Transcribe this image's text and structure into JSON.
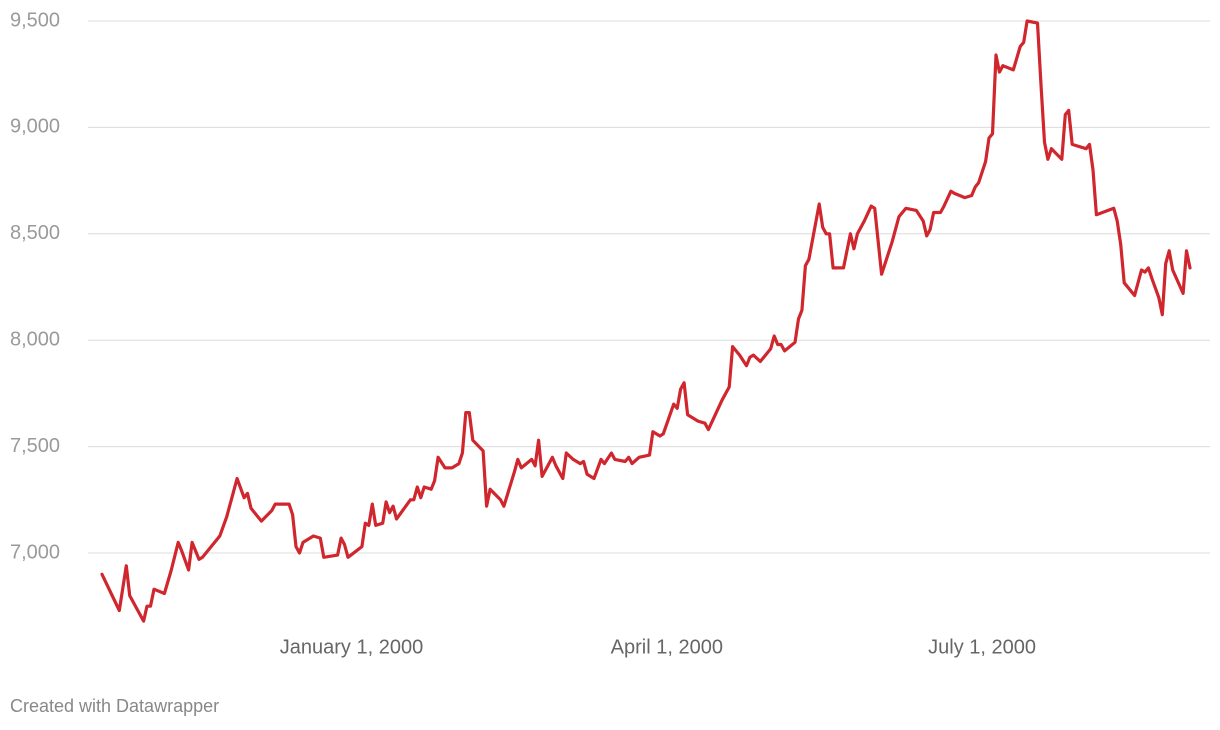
{
  "chart_data": {
    "type": "line",
    "x": [
      "1999-10-21",
      "1999-10-26",
      "1999-10-28",
      "1999-10-29",
      "1999-11-02",
      "1999-11-03",
      "1999-11-04",
      "1999-11-05",
      "1999-11-08",
      "1999-11-10",
      "1999-11-12",
      "1999-11-13",
      "1999-11-15",
      "1999-11-16",
      "1999-11-18",
      "1999-11-19",
      "1999-11-24",
      "1999-11-26",
      "1999-11-29",
      "1999-12-01",
      "1999-12-02",
      "1999-12-03",
      "1999-12-06",
      "1999-12-09",
      "1999-12-10",
      "1999-12-14",
      "1999-12-15",
      "1999-12-16",
      "1999-12-17",
      "1999-12-18",
      "1999-12-21",
      "1999-12-23",
      "1999-12-24",
      "1999-12-28",
      "1999-12-29",
      "1999-12-30",
      "1999-12-31",
      "2000-01-04",
      "2000-01-05",
      "2000-01-06",
      "2000-01-07",
      "2000-01-08",
      "2000-01-10",
      "2000-01-11",
      "2000-01-12",
      "2000-01-13",
      "2000-01-14",
      "2000-01-18",
      "2000-01-19",
      "2000-01-20",
      "2000-01-21",
      "2000-01-22",
      "2000-01-24",
      "2000-01-25",
      "2000-01-26",
      "2000-01-28",
      "2000-01-30",
      "2000-02-01",
      "2000-02-02",
      "2000-02-03",
      "2000-02-04",
      "2000-02-05",
      "2000-02-08",
      "2000-02-09",
      "2000-02-10",
      "2000-02-13",
      "2000-02-14",
      "2000-02-17",
      "2000-02-18",
      "2000-02-19",
      "2000-02-22",
      "2000-02-23",
      "2000-02-24",
      "2000-02-25",
      "2000-02-28",
      "2000-02-29",
      "2000-03-02",
      "2000-03-03",
      "2000-03-05",
      "2000-03-07",
      "2000-03-08",
      "2000-03-09",
      "2000-03-11",
      "2000-03-13",
      "2000-03-14",
      "2000-03-16",
      "2000-03-17",
      "2000-03-20",
      "2000-03-21",
      "2000-03-22",
      "2000-03-24",
      "2000-03-27",
      "2000-03-28",
      "2000-03-30",
      "2000-03-31",
      "2000-04-03",
      "2000-04-04",
      "2000-04-05",
      "2000-04-06",
      "2000-04-07",
      "2000-04-10",
      "2000-04-12",
      "2000-04-13",
      "2000-04-17",
      "2000-04-19",
      "2000-04-20",
      "2000-04-22",
      "2000-04-24",
      "2000-04-25",
      "2000-04-26",
      "2000-04-28",
      "2000-05-01",
      "2000-05-02",
      "2000-05-03",
      "2000-05-04",
      "2000-05-05",
      "2000-05-08",
      "2000-05-09",
      "2000-05-10",
      "2000-05-11",
      "2000-05-12",
      "2000-05-15",
      "2000-05-16",
      "2000-05-17",
      "2000-05-18",
      "2000-05-19",
      "2000-05-22",
      "2000-05-24",
      "2000-05-25",
      "2000-05-26",
      "2000-05-28",
      "2000-05-30",
      "2000-05-31",
      "2000-06-02",
      "2000-06-05",
      "2000-06-07",
      "2000-06-08",
      "2000-06-09",
      "2000-06-12",
      "2000-06-14",
      "2000-06-15",
      "2000-06-16",
      "2000-06-17",
      "2000-06-19",
      "2000-06-20",
      "2000-06-22",
      "2000-06-23",
      "2000-06-26",
      "2000-06-28",
      "2000-06-29",
      "2000-06-30",
      "2000-07-02",
      "2000-07-03",
      "2000-07-04",
      "2000-07-05",
      "2000-07-06",
      "2000-07-07",
      "2000-07-10",
      "2000-07-12",
      "2000-07-13",
      "2000-07-14",
      "2000-07-17",
      "2000-07-18",
      "2000-07-19",
      "2000-07-20",
      "2000-07-21",
      "2000-07-24",
      "2000-07-25",
      "2000-07-26",
      "2000-07-27",
      "2000-07-31",
      "2000-08-01",
      "2000-08-02",
      "2000-08-03",
      "2000-08-08",
      "2000-08-09",
      "2000-08-10",
      "2000-08-11",
      "2000-08-14",
      "2000-08-16",
      "2000-08-17",
      "2000-08-18",
      "2000-08-19",
      "2000-08-21",
      "2000-08-22",
      "2000-08-23",
      "2000-08-24",
      "2000-08-25",
      "2000-08-28",
      "2000-08-29",
      "2000-08-30"
    ],
    "series": [
      {
        "color": "#d0262d",
        "values": [
          6900,
          6730,
          6940,
          6800,
          6680,
          6750,
          6750,
          6830,
          6810,
          6920,
          7050,
          7010,
          6920,
          7050,
          6970,
          6980,
          7080,
          7170,
          7350,
          7260,
          7280,
          7210,
          7150,
          7200,
          7230,
          7230,
          7180,
          7030,
          7000,
          7050,
          7080,
          7070,
          6980,
          6990,
          7070,
          7040,
          6980,
          7030,
          7140,
          7130,
          7230,
          7130,
          7140,
          7240,
          7190,
          7220,
          7160,
          7250,
          7250,
          7310,
          7260,
          7310,
          7300,
          7340,
          7450,
          7400,
          7400,
          7420,
          7470,
          7660,
          7660,
          7530,
          7480,
          7220,
          7300,
          7250,
          7220,
          7380,
          7440,
          7400,
          7440,
          7410,
          7530,
          7360,
          7450,
          7410,
          7350,
          7470,
          7440,
          7420,
          7430,
          7370,
          7350,
          7440,
          7420,
          7470,
          7440,
          7430,
          7450,
          7420,
          7450,
          7460,
          7570,
          7550,
          7560,
          7700,
          7680,
          7770,
          7800,
          7650,
          7620,
          7610,
          7580,
          7720,
          7780,
          7970,
          7930,
          7880,
          7920,
          7930,
          7900,
          7960,
          8020,
          7980,
          7980,
          7950,
          7990,
          8100,
          8140,
          8350,
          8380,
          8640,
          8530,
          8500,
          8500,
          8340,
          8340,
          8500,
          8430,
          8500,
          8560,
          8630,
          8620,
          8310,
          8460,
          8580,
          8600,
          8620,
          8610,
          8560,
          8490,
          8520,
          8600,
          8600,
          8630,
          8700,
          8690,
          8670,
          8680,
          8720,
          8740,
          8840,
          8950,
          8970,
          9340,
          9260,
          9290,
          9270,
          9380,
          9400,
          9500,
          9490,
          9200,
          8930,
          8850,
          8900,
          8850,
          9060,
          9080,
          8920,
          8900,
          8920,
          8800,
          8590,
          8620,
          8560,
          8450,
          8270,
          8210,
          8330,
          8320,
          8340,
          8290,
          8200,
          8120,
          8360,
          8420,
          8330,
          8220,
          8420,
          8340
        ]
      }
    ],
    "xlim": [
      "1999-10-21",
      "2000-08-30"
    ],
    "xticks": [
      {
        "value": "2000-01-01",
        "label": "January 1, 2000"
      },
      {
        "value": "2000-04-01",
        "label": "April 1, 2000"
      },
      {
        "value": "2000-07-01",
        "label": "July 1, 2000"
      }
    ],
    "ylim": [
      6650,
      9500
    ],
    "yticks": [
      {
        "value": 7000,
        "label": "7,000"
      },
      {
        "value": 7500,
        "label": "7,500"
      },
      {
        "value": 8000,
        "label": "8,000"
      },
      {
        "value": 8500,
        "label": "8,500"
      },
      {
        "value": 9000,
        "label": "9,000"
      },
      {
        "value": 9500,
        "label": "9,500"
      }
    ],
    "grid": true,
    "credit": "Created with Datawrapper"
  }
}
